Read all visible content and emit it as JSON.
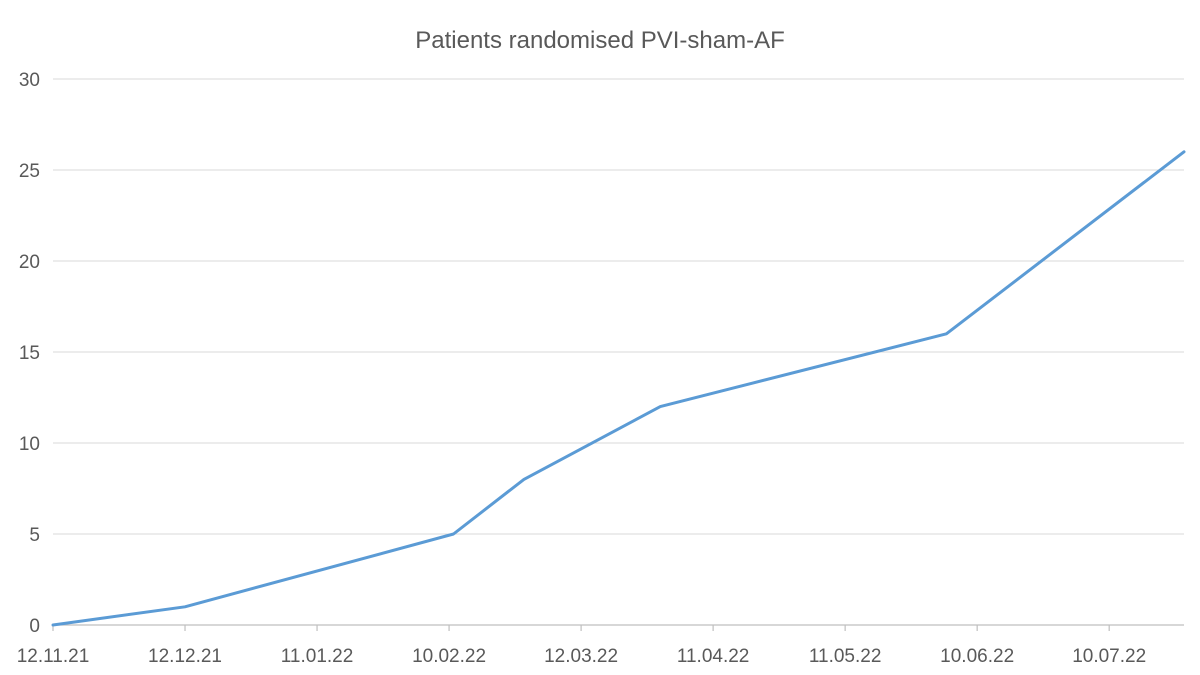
{
  "chart_data": {
    "type": "line",
    "title": "Patients randomised PVI-sham-AF",
    "xlabel": "",
    "ylabel": "",
    "x_tick_labels": [
      "12.11.21",
      "12.12.21",
      "11.01.22",
      "10.02.22",
      "12.03.22",
      "11.04.22",
      "11.05.22",
      "10.06.22",
      "10.07.22"
    ],
    "x_ticks": [
      "2021-11-12",
      "2021-12-12",
      "2022-01-11",
      "2022-02-10",
      "2022-03-12",
      "2022-04-11",
      "2022-05-11",
      "2022-06-10",
      "2022-07-10"
    ],
    "xlim": [
      "2021-11-12",
      "2022-07-27"
    ],
    "ylim": [
      0,
      30
    ],
    "y_ticks": [
      0,
      5,
      10,
      15,
      20,
      25,
      30
    ],
    "grid": true,
    "series": [
      {
        "color": "#5b9bd5",
        "points": [
          {
            "x": "2021-11-12",
            "y": 0
          },
          {
            "x": "2021-12-12",
            "y": 1
          },
          {
            "x": "2022-02-11",
            "y": 5
          },
          {
            "x": "2022-02-27",
            "y": 8
          },
          {
            "x": "2022-03-30",
            "y": 12
          },
          {
            "x": "2022-06-03",
            "y": 16
          },
          {
            "x": "2022-07-27",
            "y": 26
          }
        ]
      }
    ]
  }
}
